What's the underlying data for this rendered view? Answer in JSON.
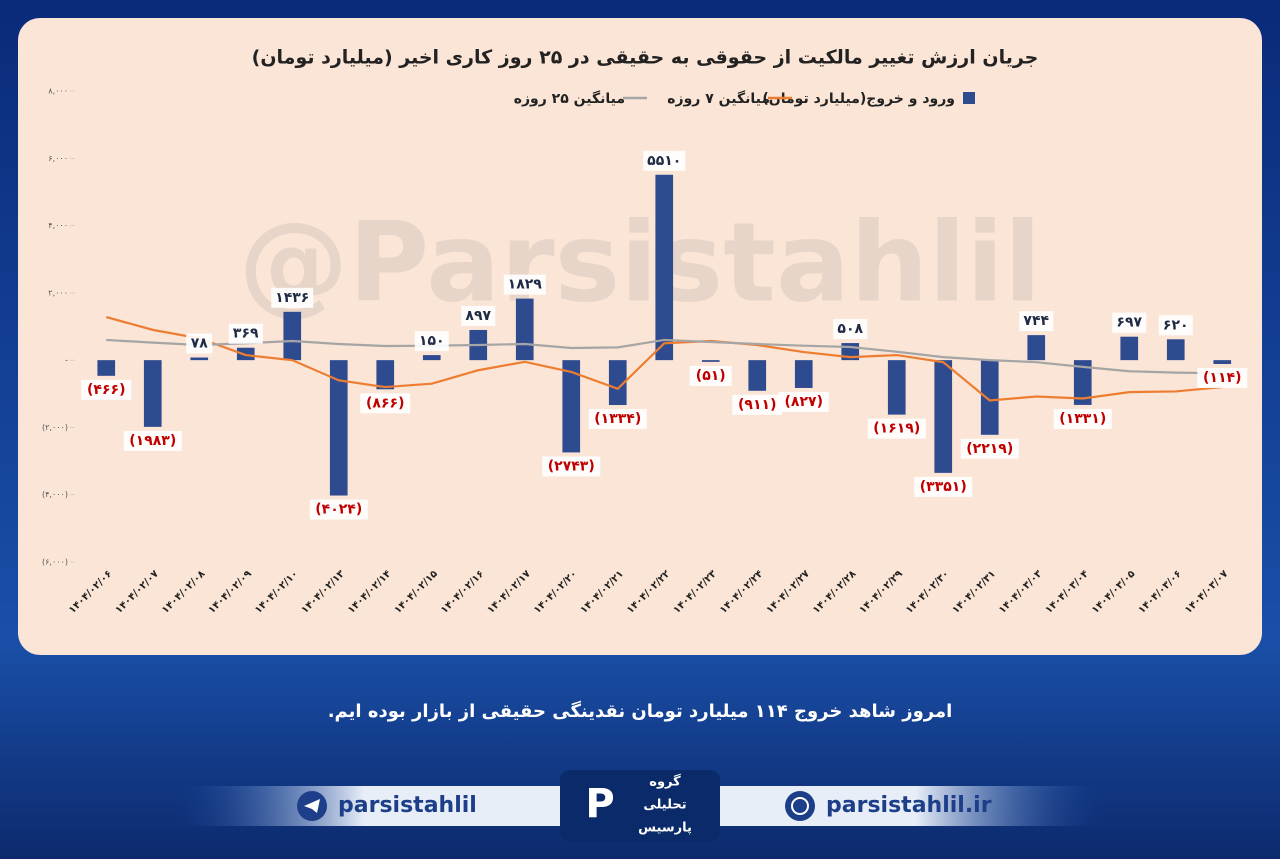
{
  "chart_data": {
    "type": "bar",
    "title": "جریان ارزش تغییر مالکیت از حقوقی به حقیقی در ۲۵ روز کاری اخیر (میلیارد تومان)",
    "watermark": "@Parsistahlil",
    "categories": [
      "۱۴۰۴/۰۲/۰۶",
      "۱۴۰۴/۰۲/۰۷",
      "۱۴۰۴/۰۲/۰۸",
      "۱۴۰۴/۰۲/۰۹",
      "۱۴۰۴/۰۲/۱۰",
      "۱۴۰۴/۰۲/۱۳",
      "۱۴۰۴/۰۲/۱۴",
      "۱۴۰۴/۰۲/۱۵",
      "۱۴۰۴/۰۲/۱۶",
      "۱۴۰۴/۰۲/۱۷",
      "۱۴۰۴/۰۲/۲۰",
      "۱۴۰۴/۰۲/۲۱",
      "۱۴۰۴/۰۲/۲۲",
      "۱۴۰۴/۰۲/۲۳",
      "۱۴۰۴/۰۲/۲۴",
      "۱۴۰۴/۰۲/۲۷",
      "۱۴۰۴/۰۲/۲۸",
      "۱۴۰۴/۰۲/۲۹",
      "۱۴۰۴/۰۲/۳۰",
      "۱۴۰۴/۰۲/۳۱",
      "۱۴۰۴/۰۳/۰۳",
      "۱۴۰۴/۰۳/۰۴",
      "۱۴۰۴/۰۳/۰۵",
      "۱۴۰۴/۰۳/۰۶",
      "۱۴۰۴/۰۳/۰۷"
    ],
    "series": [
      {
        "name": "ورود و خروج(میلیارد تومان)",
        "type": "bar",
        "color": "#2f4b8f",
        "values": [
          -466,
          -1983,
          78,
          369,
          1436,
          -4024,
          -866,
          150,
          897,
          1829,
          -2743,
          -1334,
          5510,
          -51,
          -911,
          -827,
          508,
          -1619,
          -3351,
          -2219,
          744,
          -1331,
          697,
          620,
          -114
        ],
        "value_labels": [
          "(۴۶۶)",
          "(۱۹۸۳)",
          "۷۸",
          "۳۶۹",
          "۱۴۳۶",
          "(۴۰۲۴)",
          "(۸۶۶)",
          "۱۵۰",
          "۸۹۷",
          "۱۸۲۹",
          "(۲۷۴۳)",
          "(۱۳۳۴)",
          "۵۵۱۰",
          "(۵۱)",
          "(۹۱۱)",
          "(۸۲۷)",
          "۵۰۸",
          "(۱۶۱۹)",
          "(۳۳۵۱)",
          "(۲۲۱۹)",
          "۷۴۴",
          "(۱۳۳۱)",
          "۶۹۷",
          "۶۲۰",
          "(۱۱۴)"
        ]
      },
      {
        "name": "میانگین ۷ روزه",
        "type": "line",
        "color": "#ed7d31",
        "values": [
          1280,
          900,
          650,
          150,
          0,
          -600,
          -800,
          -700,
          -300,
          -50,
          -350,
          -850,
          500,
          570,
          450,
          240,
          90,
          150,
          -60,
          -1200,
          -1080,
          -1140,
          -950,
          -930,
          -800
        ]
      },
      {
        "name": "میانگین ۲۵ روزه",
        "type": "line",
        "color": "#a5a5a5",
        "values": [
          600,
          520,
          450,
          500,
          570,
          480,
          420,
          430,
          450,
          480,
          360,
          380,
          600,
          540,
          480,
          430,
          390,
          250,
          90,
          0,
          -60,
          -200,
          -330,
          -370,
          -390
        ]
      }
    ],
    "ylim": [
      -6000,
      8000
    ],
    "yticks": [
      {
        "value": -6000,
        "label": "(۶,۰۰۰)"
      },
      {
        "value": -4000,
        "label": "(۴,۰۰۰)"
      },
      {
        "value": -2000,
        "label": "(۲,۰۰۰)"
      },
      {
        "value": 0,
        "label": "-"
      },
      {
        "value": 2000,
        "label": "۲,۰۰۰"
      },
      {
        "value": 4000,
        "label": "۴,۰۰۰"
      },
      {
        "value": 6000,
        "label": "۶,۰۰۰"
      },
      {
        "value": 8000,
        "label": "۸,۰۰۰"
      }
    ],
    "grid": false
  },
  "caption": "امروز شاهد خروج ۱۱۴ میلیارد تومان نقدینگی حقیقی از بازار بوده ایم.",
  "footer": {
    "telegram": "parsistahlil",
    "website": "parsistahlil.ir",
    "logo": [
      "گروه",
      "تحلیلی",
      "پارسیس"
    ]
  }
}
